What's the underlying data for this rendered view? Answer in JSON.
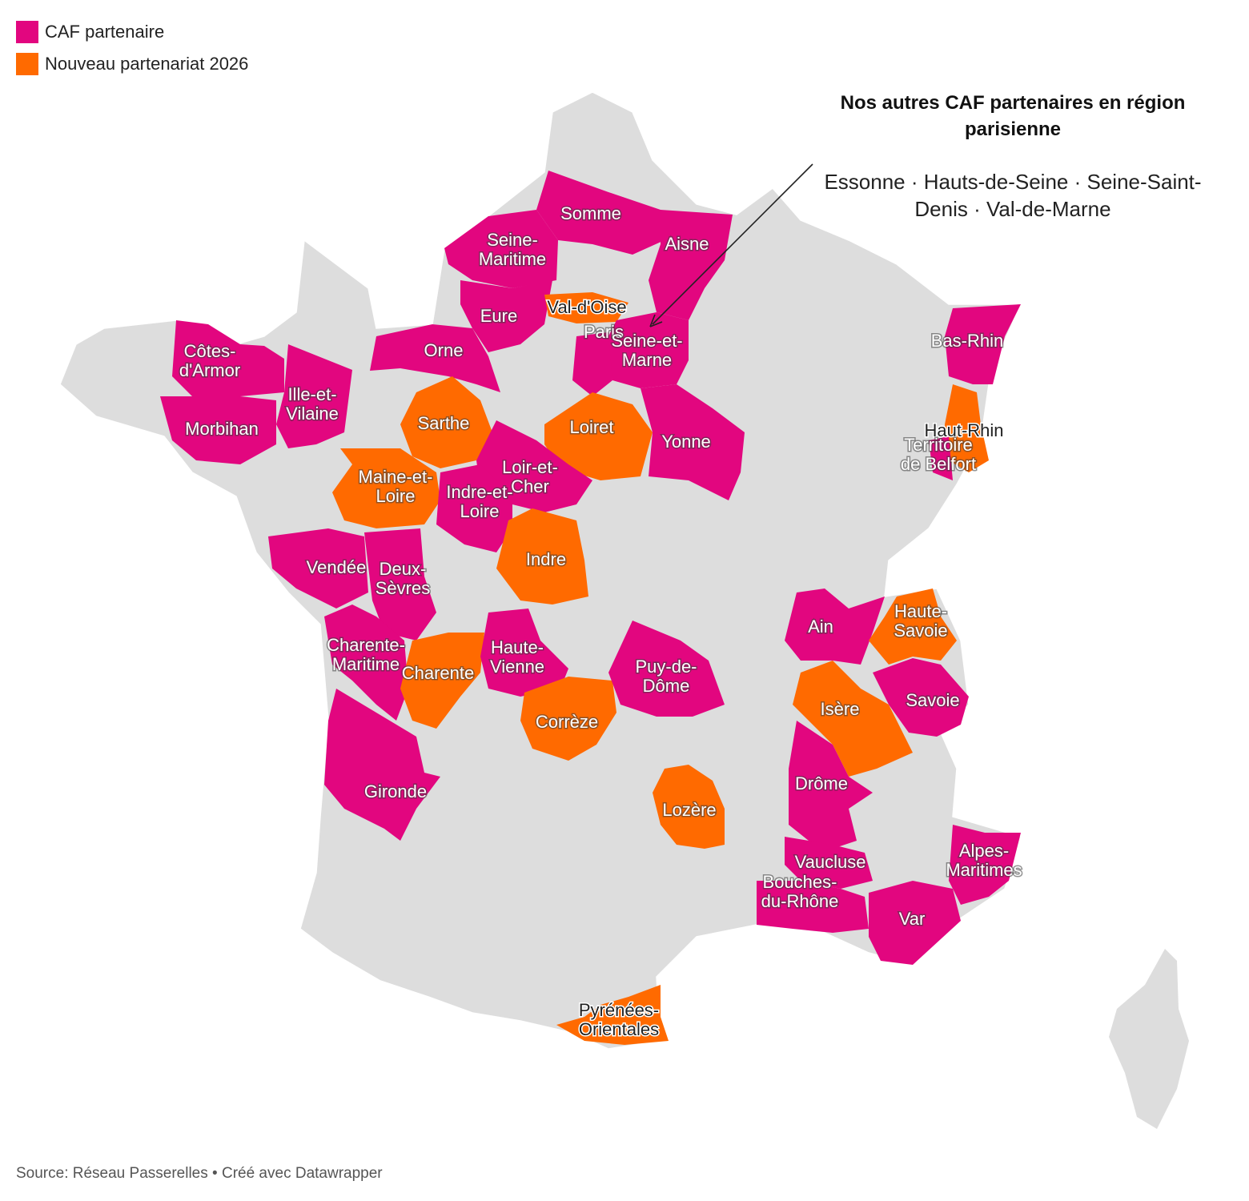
{
  "colors": {
    "partner": "#e2067f",
    "new2026": "#ff6a00",
    "land": "#dddddd",
    "border": "#ffffff"
  },
  "legend": [
    {
      "label": "CAF partenaire",
      "color": "#e2067f"
    },
    {
      "label": "Nouveau partenariat 2026",
      "color": "#ff6a00"
    }
  ],
  "annotation": {
    "title": "Nos autres CAF partenaires en région parisienne",
    "body": "Essonne · Hauts-de-Seine · Seine-Saint-Denis · Val-de-Marne"
  },
  "footer": {
    "source": "Source: Réseau Passerelles",
    "credit": "Créé avec Datawrapper"
  },
  "departments": [
    {
      "name": "Somme",
      "lines": [
        "Somme"
      ],
      "status": "partner"
    },
    {
      "name": "Aisne",
      "lines": [
        "Aisne"
      ],
      "status": "partner"
    },
    {
      "name": "Seine-Maritime",
      "lines": [
        "Seine-",
        "Maritime"
      ],
      "status": "partner"
    },
    {
      "name": "Eure",
      "lines": [
        "Eure"
      ],
      "status": "partner"
    },
    {
      "name": "Val-d'Oise",
      "lines": [
        "Val-d'Oise"
      ],
      "status": "new2026"
    },
    {
      "name": "Paris",
      "lines": [
        "Paris"
      ],
      "status": "partner"
    },
    {
      "name": "Seine-et-Marne",
      "lines": [
        "Seine-et-",
        "Marne"
      ],
      "status": "partner"
    },
    {
      "name": "Orne",
      "lines": [
        "Orne"
      ],
      "status": "partner"
    },
    {
      "name": "Côtes-d'Armor",
      "lines": [
        "Côtes-",
        "d'Armor"
      ],
      "status": "partner"
    },
    {
      "name": "Ille-et-Vilaine",
      "lines": [
        "Ille-et-",
        "Vilaine"
      ],
      "status": "partner"
    },
    {
      "name": "Morbihan",
      "lines": [
        "Morbihan"
      ],
      "status": "partner"
    },
    {
      "name": "Sarthe",
      "lines": [
        "Sarthe"
      ],
      "status": "new2026"
    },
    {
      "name": "Loiret",
      "lines": [
        "Loiret"
      ],
      "status": "new2026"
    },
    {
      "name": "Yonne",
      "lines": [
        "Yonne"
      ],
      "status": "partner"
    },
    {
      "name": "Bas-Rhin",
      "lines": [
        "Bas-Rhin"
      ],
      "status": "partner"
    },
    {
      "name": "Haut-Rhin",
      "lines": [
        "Haut-Rhin"
      ],
      "status": "new2026"
    },
    {
      "name": "Territoire de Belfort",
      "lines": [
        "Territoire",
        "de Belfort"
      ],
      "status": "partner"
    },
    {
      "name": "Maine-et-Loire",
      "lines": [
        "Maine-et-",
        "Loire"
      ],
      "status": "new2026"
    },
    {
      "name": "Loir-et-Cher",
      "lines": [
        "Loir-et-",
        "Cher"
      ],
      "status": "partner"
    },
    {
      "name": "Indre-et-Loire",
      "lines": [
        "Indre-et-",
        "Loire"
      ],
      "status": "partner"
    },
    {
      "name": "Indre",
      "lines": [
        "Indre"
      ],
      "status": "new2026"
    },
    {
      "name": "Vendée",
      "lines": [
        "Vendée"
      ],
      "status": "partner"
    },
    {
      "name": "Deux-Sèvres",
      "lines": [
        "Deux-",
        "Sèvres"
      ],
      "status": "partner"
    },
    {
      "name": "Charente-Maritime",
      "lines": [
        "Charente-",
        "Maritime"
      ],
      "status": "partner"
    },
    {
      "name": "Charente",
      "lines": [
        "Charente"
      ],
      "status": "new2026"
    },
    {
      "name": "Haute-Vienne",
      "lines": [
        "Haute-",
        "Vienne"
      ],
      "status": "partner"
    },
    {
      "name": "Corrèze",
      "lines": [
        "Corrèze"
      ],
      "status": "new2026"
    },
    {
      "name": "Puy-de-Dôme",
      "lines": [
        "Puy-de-",
        "Dôme"
      ],
      "status": "partner"
    },
    {
      "name": "Gironde",
      "lines": [
        "Gironde"
      ],
      "status": "partner"
    },
    {
      "name": "Lozère",
      "lines": [
        "Lozère"
      ],
      "status": "new2026"
    },
    {
      "name": "Ain",
      "lines": [
        "Ain"
      ],
      "status": "partner"
    },
    {
      "name": "Haute-Savoie",
      "lines": [
        "Haute-",
        "Savoie"
      ],
      "status": "new2026"
    },
    {
      "name": "Savoie",
      "lines": [
        "Savoie"
      ],
      "status": "partner"
    },
    {
      "name": "Isère",
      "lines": [
        "Isère"
      ],
      "status": "new2026"
    },
    {
      "name": "Drôme",
      "lines": [
        "Drôme"
      ],
      "status": "partner"
    },
    {
      "name": "Vaucluse",
      "lines": [
        "Vaucluse"
      ],
      "status": "partner"
    },
    {
      "name": "Bouches-du-Rhône",
      "lines": [
        "Bouches-",
        "du-Rhône"
      ],
      "status": "partner"
    },
    {
      "name": "Var",
      "lines": [
        "Var"
      ],
      "status": "partner"
    },
    {
      "name": "Alpes-Maritimes",
      "lines": [
        "Alpes-",
        "Maritimes"
      ],
      "status": "partner"
    },
    {
      "name": "Pyrénées-Orientales",
      "lines": [
        "Pyrénées-",
        "Orientales"
      ],
      "status": "new2026"
    }
  ]
}
